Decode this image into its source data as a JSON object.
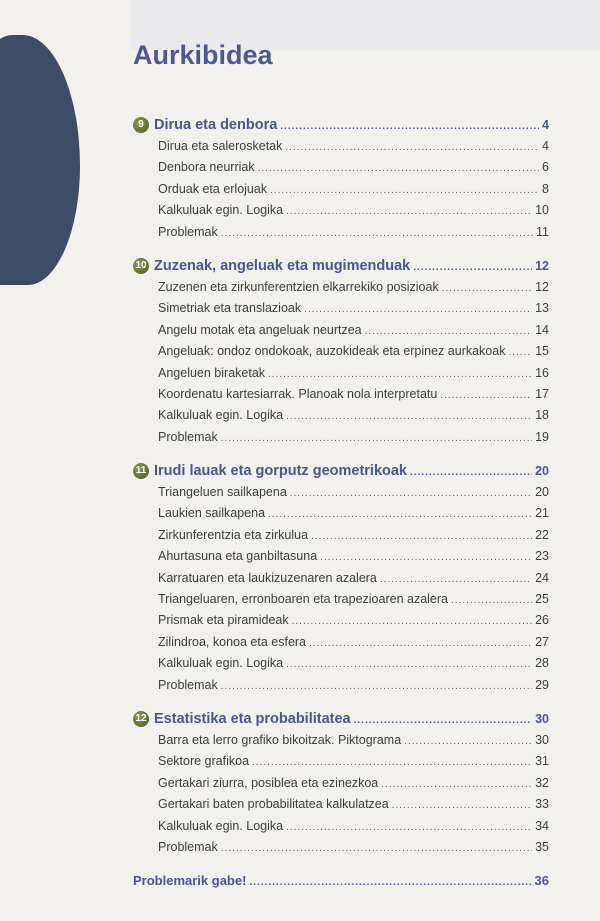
{
  "title": "Aurkibidea",
  "chapters": [
    {
      "number": "9",
      "title": "Dirua eta denbora",
      "page": "4",
      "entries": [
        {
          "label": "Dirua eta salerosketak",
          "page": "4"
        },
        {
          "label": "Denbora neurriak",
          "page": "6"
        },
        {
          "label": "Orduak eta erlojuak",
          "page": "8"
        },
        {
          "label": "Kalkuluak egin. Logika",
          "page": "10"
        },
        {
          "label": "Problemak",
          "page": "11"
        }
      ]
    },
    {
      "number": "10",
      "title": "Zuzenak, angeluak eta mugimenduak",
      "page": "12",
      "entries": [
        {
          "label": "Zuzenen eta zirkunferentzien elkarrekiko posizioak",
          "page": "12"
        },
        {
          "label": "Simetriak eta translazioak",
          "page": "13"
        },
        {
          "label": "Angelu motak eta angeluak neurtzea",
          "page": "14"
        },
        {
          "label": "Angeluak: ondoz ondokoak, auzokideak eta erpinez aurkakoak",
          "page": "15"
        },
        {
          "label": "Angeluen biraketak",
          "page": "16"
        },
        {
          "label": "Koordenatu kartesiarrak. Planoak nola interpretatu",
          "page": "17"
        },
        {
          "label": "Kalkuluak egin. Logika",
          "page": "18"
        },
        {
          "label": "Problemak",
          "page": "19"
        }
      ]
    },
    {
      "number": "11",
      "title": "Irudi lauak eta gorputz geometrikoak",
      "page": "20",
      "entries": [
        {
          "label": "Triangeluen sailkapena",
          "page": "20"
        },
        {
          "label": "Laukien sailkapena",
          "page": "21"
        },
        {
          "label": "Zirkunferentzia eta zirkulua",
          "page": "22"
        },
        {
          "label": "Ahurtasuna eta ganbiltasuna",
          "page": "23"
        },
        {
          "label": "Karratuaren eta laukizuzenaren azalera",
          "page": "24"
        },
        {
          "label": "Triangeluaren, erronboaren eta trapezioaren azalera",
          "page": "25"
        },
        {
          "label": "Prismak eta piramideak",
          "page": "26"
        },
        {
          "label": "Zilindroa, konoa eta esfera",
          "page": "27"
        },
        {
          "label": "Kalkuluak egin. Logika",
          "page": "28"
        },
        {
          "label": "Problemak",
          "page": "29"
        }
      ]
    },
    {
      "number": "12",
      "title": "Estatistika eta probabilitatea",
      "page": "30",
      "entries": [
        {
          "label": "Barra eta lerro grafiko bikoitzak. Piktograma",
          "page": "30"
        },
        {
          "label": "Sektore grafikoa",
          "page": "31"
        },
        {
          "label": "Gertakari ziurra, posiblea eta ezinezkoa",
          "page": "32"
        },
        {
          "label": "Gertakari baten probabilitatea kalkulatzea",
          "page": "33"
        },
        {
          "label": "Kalkuluak egin. Logika",
          "page": "34"
        },
        {
          "label": "Problemak",
          "page": "35"
        }
      ]
    }
  ],
  "final": {
    "label": "Problemarik gabe!",
    "page": "36"
  },
  "colors": {
    "heading": "#4b5590",
    "badge": "#6b7a30",
    "text": "#3d3d3d",
    "background": "#f2f1ee"
  }
}
